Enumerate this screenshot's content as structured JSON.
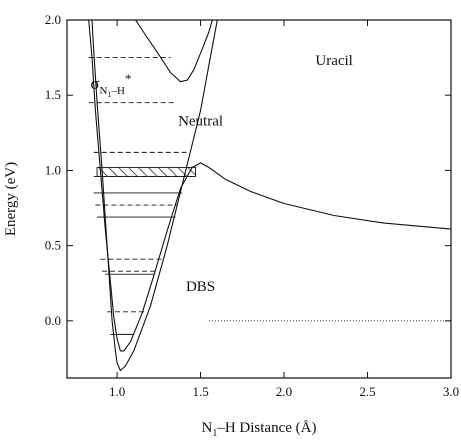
{
  "chart_data": {
    "type": "line",
    "title": "",
    "xlabel": {
      "pre": "N",
      "sub": "1",
      "post": "–H Distance (Å)"
    },
    "ylabel": "Energy (eV)",
    "xlim": [
      0.7,
      3.0
    ],
    "ylim": [
      -0.38,
      2.0
    ],
    "x_ticks": [
      {
        "v": 1.0,
        "label": "1.0"
      },
      {
        "v": 1.5,
        "label": "1.5"
      },
      {
        "v": 2.0,
        "label": "2.0"
      },
      {
        "v": 2.5,
        "label": "2.5"
      },
      {
        "v": 3.0,
        "label": "3.0"
      }
    ],
    "y_ticks": [
      {
        "v": 0.0,
        "label": "0.0"
      },
      {
        "v": 0.5,
        "label": "0.5"
      },
      {
        "v": 1.0,
        "label": "1.0"
      },
      {
        "v": 1.5,
        "label": "1.5"
      },
      {
        "v": 2.0,
        "label": "2.0"
      }
    ],
    "grid": false,
    "annotations": {
      "uracil": {
        "text": "Uracil",
        "x": 2.3,
        "y": 1.7
      },
      "neutral": {
        "text": "Neutral",
        "x": 1.5,
        "y": 1.3
      },
      "dbs": {
        "text": "DBS",
        "x": 1.5,
        "y": 0.2
      },
      "sigma": {
        "sym": "σ",
        "sub1": "N",
        "sub2": "1",
        "rest": "–H",
        "star": "*",
        "x": 0.84,
        "y": 1.54
      }
    },
    "series": [
      {
        "id": "neutral-curve",
        "style": "solid",
        "points": [
          [
            0.83,
            2.0
          ],
          [
            0.85,
            1.75
          ],
          [
            0.87,
            1.4
          ],
          [
            0.9,
            1.0
          ],
          [
            0.93,
            0.6
          ],
          [
            0.96,
            0.26
          ],
          [
            0.98,
            0.03
          ],
          [
            1.0,
            -0.12
          ],
          [
            1.02,
            -0.2
          ],
          [
            1.04,
            -0.2
          ],
          [
            1.08,
            -0.14
          ],
          [
            1.15,
            0.05
          ],
          [
            1.22,
            0.3
          ],
          [
            1.3,
            0.6
          ],
          [
            1.38,
            0.88
          ],
          [
            1.45,
            1.02
          ],
          [
            1.5,
            1.05
          ],
          [
            1.55,
            1.02
          ],
          [
            1.65,
            0.94
          ],
          [
            1.8,
            0.86
          ],
          [
            2.0,
            0.78
          ],
          [
            2.3,
            0.7
          ],
          [
            2.6,
            0.65
          ],
          [
            3.0,
            0.61
          ]
        ]
      },
      {
        "id": "dbs-curve",
        "style": "solid",
        "points": [
          [
            0.85,
            2.0
          ],
          [
            0.86,
            1.8
          ],
          [
            0.88,
            1.45
          ],
          [
            0.91,
            1.0
          ],
          [
            0.94,
            0.5
          ],
          [
            0.97,
            0.0
          ],
          [
            0.99,
            -0.2
          ],
          [
            1.0,
            -0.28
          ],
          [
            1.02,
            -0.33
          ],
          [
            1.05,
            -0.3
          ],
          [
            1.1,
            -0.2
          ],
          [
            1.2,
            0.1
          ],
          [
            1.3,
            0.5
          ],
          [
            1.4,
            0.95
          ],
          [
            1.5,
            1.4
          ],
          [
            1.55,
            1.7
          ],
          [
            1.6,
            2.0
          ]
        ]
      },
      {
        "id": "sigma-star-curve",
        "style": "solid",
        "points": [
          [
            1.11,
            2.0
          ],
          [
            1.17,
            1.9
          ],
          [
            1.25,
            1.77
          ],
          [
            1.32,
            1.65
          ],
          [
            1.38,
            1.59
          ],
          [
            1.42,
            1.6
          ],
          [
            1.46,
            1.67
          ],
          [
            1.5,
            1.78
          ],
          [
            1.55,
            1.92
          ],
          [
            1.57,
            2.0
          ]
        ]
      },
      {
        "id": "zero-line",
        "style": "dotted",
        "points": [
          [
            1.55,
            0.0
          ],
          [
            3.0,
            0.0
          ]
        ]
      }
    ],
    "levels": [
      {
        "y": 1.75,
        "x1": 0.83,
        "x2": 1.32,
        "style": "dashed"
      },
      {
        "y": 1.45,
        "x1": 0.83,
        "x2": 1.35,
        "style": "dashed"
      },
      {
        "y": 1.12,
        "x1": 0.86,
        "x2": 1.42,
        "style": "dashed"
      },
      {
        "y": 0.96,
        "x1": 0.86,
        "x2": 1.45,
        "style": "dashed"
      },
      {
        "y": 0.85,
        "x1": 0.86,
        "x2": 1.39,
        "style": "solid"
      },
      {
        "y": 0.77,
        "x1": 0.87,
        "x2": 1.36,
        "style": "dashed"
      },
      {
        "y": 0.69,
        "x1": 0.88,
        "x2": 1.35,
        "style": "solid"
      },
      {
        "y": 0.41,
        "x1": 0.9,
        "x2": 1.27,
        "style": "dashed"
      },
      {
        "y": 0.33,
        "x1": 0.91,
        "x2": 1.24,
        "style": "dashed"
      },
      {
        "y": 0.31,
        "x1": 0.93,
        "x2": 1.22,
        "style": "solid"
      },
      {
        "y": 0.06,
        "x1": 0.94,
        "x2": 1.17,
        "style": "dashed"
      },
      {
        "y": -0.09,
        "x1": 0.96,
        "x2": 1.1,
        "style": "solid"
      }
    ],
    "hatched_band": {
      "y_low": 0.96,
      "y_high": 1.02,
      "x1": 0.88,
      "x2": 1.47
    }
  }
}
